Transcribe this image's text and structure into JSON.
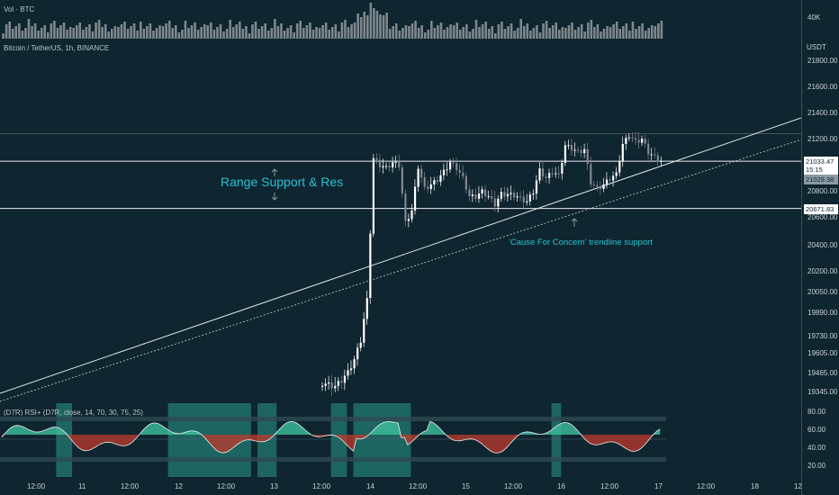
{
  "volume_legend": "Vol · BTC",
  "symbol_legend": "Bitcoin / TetherUS, 1h, BINANCE",
  "rsi_legend": "(D7R) RSI+ (D7R, close, 14, 70, 30, 75, 25)",
  "volume_axis_label": "40K",
  "price_axis_unit": "USDT",
  "annotations": {
    "range": "Range Support & Res",
    "trendline": "'Cause For Concern' trendline support"
  },
  "price_tags": {
    "current_price": "21033.47",
    "countdown": "15:15",
    "range_low": "21029.38",
    "support": "20671.83"
  },
  "colors": {
    "background": "#0f2530",
    "up_candle": "#ffffff",
    "down_candle": "#808890",
    "rsi_fill_up": "#3fbf9f",
    "rsi_fill_down": "#c0392b",
    "rsi_zone": "#2a9a8a",
    "annotation": "#24c4d4"
  },
  "chart_data": [
    {
      "type": "candlestick",
      "title": "Bitcoin / TetherUS, 1h, BINANCE",
      "y_ticks": [
        21800,
        21600,
        21400,
        21200,
        21000,
        20800,
        20600,
        20400,
        20200,
        20050,
        19890,
        19730,
        19605,
        19465,
        19345
      ],
      "x_ticks": [
        "12:00",
        "11",
        "12:00",
        "12",
        "12:00",
        "13",
        "12:00",
        "14",
        "12:00",
        "15",
        "12:00",
        "16",
        "12:00",
        "17",
        "12:00",
        "18",
        "12"
      ],
      "horizontal_levels": [
        21245,
        21033.47,
        20671.83
      ],
      "segments": [
        {
          "from": [
            0,
            19370
          ],
          "to": [
            120,
            21000
          ]
        },
        {
          "from": [
            120,
            21000
          ],
          "to": [
            248,
            21030
          ]
        }
      ]
    },
    {
      "type": "bar",
      "title": "Vol · BTC",
      "y_ticks": [
        "40K"
      ]
    },
    {
      "type": "area",
      "title": "(D7R) RSI+ (D7R, close, 14, 70, 30, 75, 25)",
      "y_ticks": [
        80,
        60,
        40,
        20
      ],
      "levels": [
        75,
        70,
        30,
        25
      ],
      "highlight_zones_x": [
        [
          17,
          22
        ],
        [
          52,
          78
        ],
        [
          80,
          86
        ],
        [
          103,
          108
        ],
        [
          110,
          128
        ],
        [
          172,
          175
        ]
      ]
    }
  ]
}
